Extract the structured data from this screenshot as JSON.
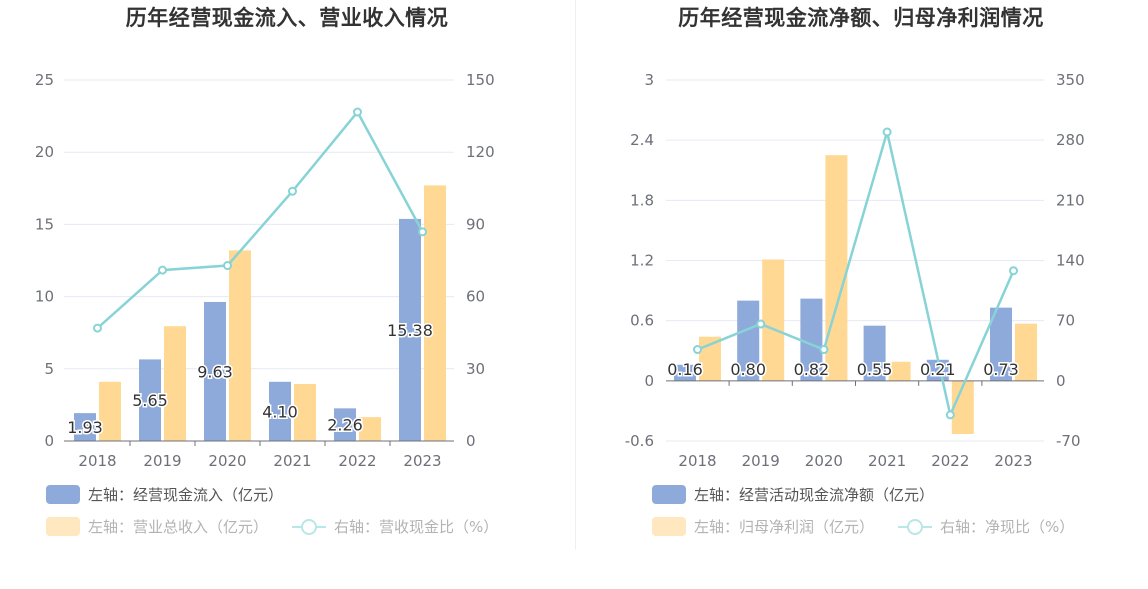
{
  "chart_data": [
    {
      "type": "bar",
      "title": "历年经营现金流入、营业收入情况",
      "categories": [
        "2018",
        "2019",
        "2020",
        "2021",
        "2022",
        "2023"
      ],
      "left_axis": {
        "ylim": [
          0,
          25
        ],
        "ticks": [
          "0",
          "5",
          "10",
          "15",
          "20",
          "25"
        ]
      },
      "right_axis": {
        "ylim": [
          0,
          150
        ],
        "ticks": [
          "0",
          "30",
          "60",
          "90",
          "120",
          "150"
        ]
      },
      "series": [
        {
          "name": "左轴：经营现金流入（亿元）",
          "type": "bar",
          "axis": "left",
          "color": "#8eaadb",
          "values": [
            1.93,
            5.65,
            9.63,
            4.1,
            2.26,
            15.38
          ],
          "labels": [
            "1.93",
            "5.65",
            "9.63",
            "4.10",
            "2.26",
            "15.38"
          ]
        },
        {
          "name": "左轴：营业总收入（亿元）",
          "type": "bar",
          "axis": "left",
          "color": "#ffd894",
          "values": [
            4.1,
            7.95,
            13.2,
            3.95,
            1.65,
            17.7
          ]
        },
        {
          "name": "右轴：营收现金比（%）",
          "type": "line",
          "axis": "right",
          "color": "#87d3d6",
          "values": [
            46.9,
            71.0,
            72.9,
            103.8,
            136.7,
            86.9
          ]
        }
      ],
      "grid": true,
      "legend": "bottom-left"
    },
    {
      "type": "bar",
      "title": "历年经营现金流净额、归母净利润情况",
      "categories": [
        "2018",
        "2019",
        "2020",
        "2021",
        "2022",
        "2023"
      ],
      "left_axis": {
        "ylim": [
          -0.6,
          3
        ],
        "ticks": [
          "-0.6",
          "0",
          "0.6",
          "1.2",
          "1.8",
          "2.4",
          "3"
        ]
      },
      "right_axis": {
        "ylim": [
          -70,
          350
        ],
        "ticks": [
          "-70",
          "0",
          "70",
          "140",
          "210",
          "280",
          "350"
        ]
      },
      "series": [
        {
          "name": "左轴：经营活动现金流净额（亿元）",
          "type": "bar",
          "axis": "left",
          "color": "#8eaadb",
          "values": [
            0.16,
            0.8,
            0.82,
            0.55,
            0.21,
            0.73
          ],
          "labels": [
            "0.16",
            "0.80",
            "0.82",
            "0.55",
            "0.21",
            "0.73"
          ]
        },
        {
          "name": "左轴：归母净利润（亿元）",
          "type": "bar",
          "axis": "left",
          "color": "#ffd894",
          "values": [
            0.44,
            1.21,
            2.25,
            0.19,
            -0.53,
            0.57
          ]
        },
        {
          "name": "右轴：净现比（%）",
          "type": "line",
          "axis": "right",
          "color": "#87d3d6",
          "values": [
            36.4,
            66.1,
            36.4,
            289.5,
            -39.6,
            128.1
          ]
        }
      ],
      "grid": true,
      "legend": "bottom-left"
    }
  ]
}
